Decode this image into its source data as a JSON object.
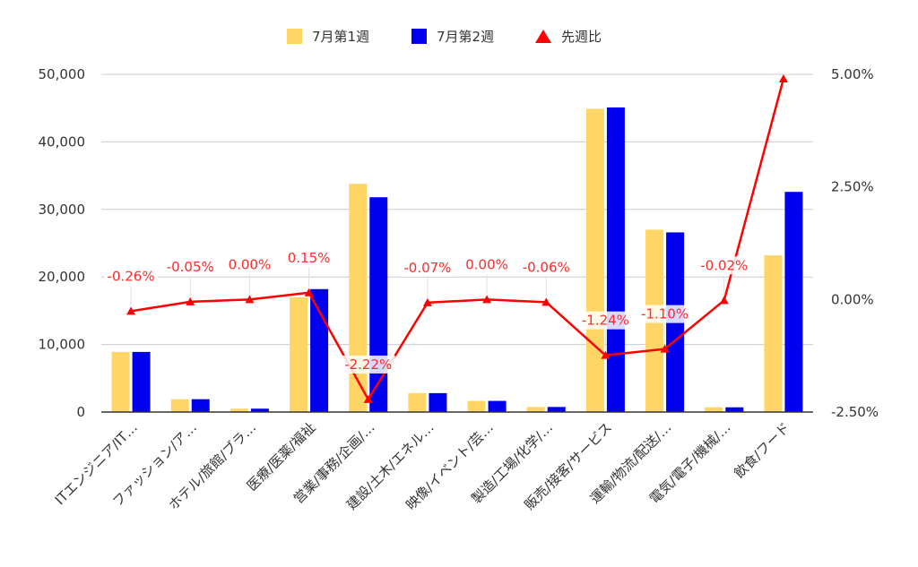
{
  "chart_data": {
    "type": "bar",
    "legend_placement": "top",
    "grid": true,
    "categories": [
      "ITエンジニア/IT…",
      "ファッション/ア…",
      "ホテル/旅館/ブラ…",
      "医療/医薬/福祉",
      "営業/事務/企画/…",
      "建設/土木/エネル…",
      "映像/イベント/芸…",
      "製造/工場/化学/…",
      "販売/接客/サービス",
      "運輸/物流/配送/…",
      "電気/電子/機械/…",
      "飲食/フード"
    ],
    "series": [
      {
        "name": "7月第1週",
        "type": "bar",
        "axis": "left",
        "color": "#ffd666",
        "values": [
          8900,
          1900,
          500,
          17000,
          33800,
          2800,
          1650,
          750,
          44900,
          27000,
          700,
          23200
        ]
      },
      {
        "name": "7月第2週",
        "type": "bar",
        "axis": "left",
        "color": "#0000ee",
        "values": [
          8900,
          1900,
          500,
          18200,
          31800,
          2800,
          1650,
          750,
          45100,
          26600,
          700,
          32600
        ]
      },
      {
        "name": "先週比",
        "type": "line",
        "axis": "right",
        "color": "#ff0000",
        "marker": "triangle",
        "values": [
          -0.26,
          -0.05,
          0.0,
          0.15,
          -2.22,
          -0.07,
          0.0,
          -0.06,
          -1.24,
          -1.1,
          -0.02,
          4.9
        ],
        "labels": [
          "-0.26%",
          "-0.05%",
          "0.00%",
          "0.15%",
          "-2.22%",
          "-0.07%",
          "0.00%",
          "-0.06%",
          "-1.24%",
          "-1.10%",
          "-0.02%",
          ""
        ]
      }
    ],
    "y_left": {
      "min": 0,
      "max": 50000,
      "ticks": [
        "0",
        "10,000",
        "20,000",
        "30,000",
        "40,000",
        "50,000"
      ]
    },
    "y_right": {
      "min": -2.5,
      "max": 5.0,
      "ticks": [
        "-2.50%",
        "0.00%",
        "2.50%",
        "5.00%"
      ]
    }
  }
}
